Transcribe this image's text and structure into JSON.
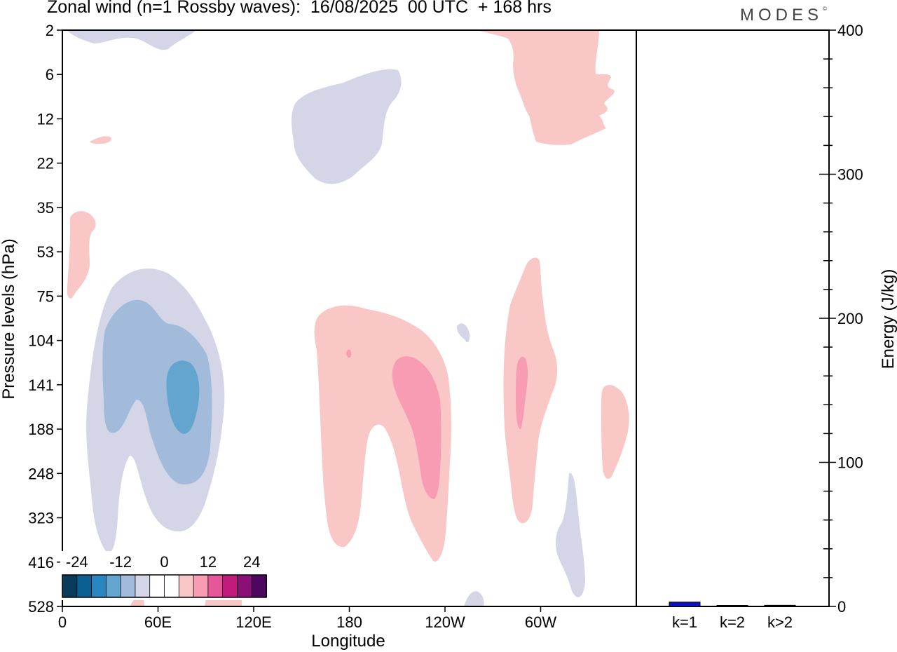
{
  "title": "Zonal wind (n=1 Rossby waves):  16/08/2025  00 UTC  + 168 hrs",
  "brand": "MODES",
  "brand_mark": "©",
  "colors": {
    "neg24": "#083b5c",
    "neg20": "#0a5f93",
    "neg16": "#2a86c0",
    "neg12": "#64a5cf",
    "neg8": "#a3bbda",
    "neg4": "#d4d6e8",
    "zero": "#ffffff",
    "pos4": "#f9c8c6",
    "pos8": "#f89cb4",
    "pos12": "#e6579a",
    "pos16": "#c21b7e",
    "pos20": "#8a0f77",
    "pos24": "#4d0761",
    "bar": "#1010cc"
  },
  "chart_data": [
    {
      "type": "heatmap",
      "title": "Zonal wind (n=1 Rossby waves):  16/08/2025  00 UTC  + 168 hrs",
      "xlabel": "Longitude",
      "ylabel": "Pressure levels (hPa)",
      "x_ticks": [
        "0",
        "60E",
        "120E",
        "180",
        "120W",
        "60W"
      ],
      "x_tick_degrees": [
        0,
        60,
        120,
        180,
        240,
        300
      ],
      "xlim": [
        0,
        360
      ],
      "y_levels": [
        "2",
        "6",
        "12",
        "22",
        "35",
        "53",
        "75",
        "104",
        "141",
        "188",
        "248",
        "323",
        "416",
        "528"
      ],
      "colorbar": {
        "tick_labels": [
          "-24",
          "-12",
          "0",
          "12",
          "24"
        ],
        "tick_values": [
          -24,
          -12,
          0,
          12,
          24
        ],
        "levels": [
          -24,
          -20,
          -16,
          -12,
          -8,
          -4,
          0,
          4,
          8,
          12,
          16,
          20,
          24
        ],
        "color_keys": [
          "neg24",
          "neg20",
          "neg16",
          "neg12",
          "neg8",
          "neg4",
          "zero",
          "zero",
          "pos4",
          "pos8",
          "pos12",
          "pos16",
          "pos20",
          "pos24"
        ]
      }
    },
    {
      "type": "bar",
      "ylabel": "Energy (J/kg)",
      "categories": [
        "k=1",
        "k=2",
        "k>2"
      ],
      "values": [
        3,
        0.5,
        0.8
      ],
      "ylim": [
        0,
        400
      ],
      "y_ticks": [
        "0",
        "100",
        "200",
        "300",
        "400"
      ],
      "y_tick_values": [
        0,
        100,
        200,
        300,
        400
      ]
    }
  ]
}
